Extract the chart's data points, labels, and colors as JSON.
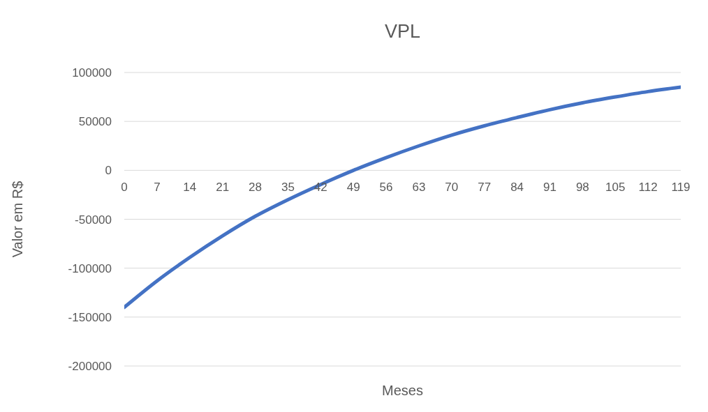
{
  "chart_data": {
    "type": "line",
    "title": "VPL",
    "xlabel": "Meses",
    "ylabel": "Valor em R$",
    "x": [
      0,
      7,
      14,
      21,
      28,
      35,
      42,
      49,
      56,
      63,
      70,
      77,
      84,
      91,
      98,
      105,
      112,
      119
    ],
    "series": [
      {
        "color": "#4472c4",
        "values": [
          -140000,
          -113000,
          -89000,
          -67000,
          -47000,
          -30000,
          -14500,
          0,
          13000,
          25000,
          36000,
          45500,
          54000,
          62000,
          69000,
          75000,
          80500,
          85000
        ]
      }
    ],
    "xlim": [
      0,
      119
    ],
    "xticks": [
      0,
      7,
      14,
      21,
      28,
      35,
      42,
      49,
      56,
      63,
      70,
      77,
      84,
      91,
      98,
      105,
      112,
      119
    ],
    "ylim": [
      -200000,
      100000
    ],
    "yticks": [
      -200000,
      -150000,
      -100000,
      -50000,
      0,
      50000,
      100000
    ],
    "grid": "y",
    "marker": "none",
    "line_style": "solid"
  }
}
